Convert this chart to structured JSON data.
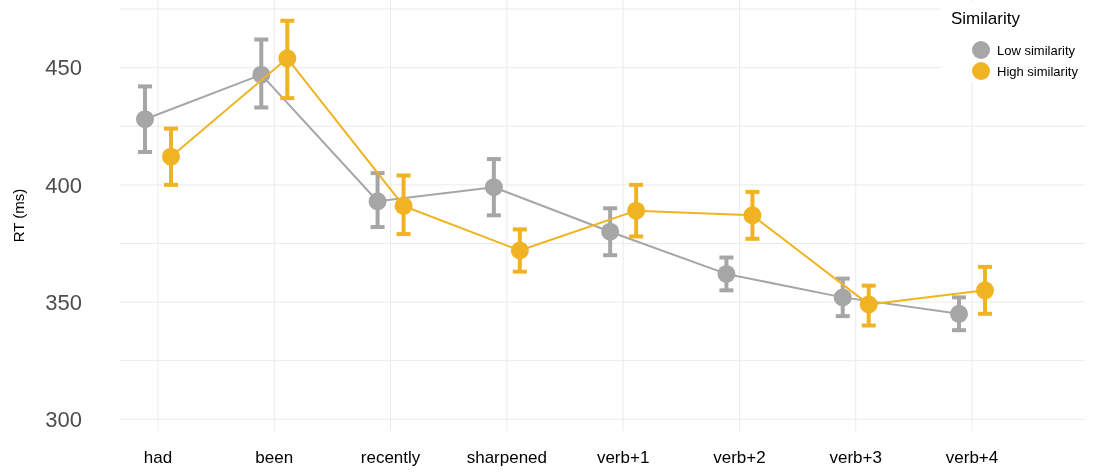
{
  "chart_data": {
    "type": "line",
    "ylabel": "RT (ms)",
    "legend_title": "Similarity",
    "legend": "top right",
    "grid": true,
    "marker": "circle",
    "line_style": "solid",
    "categories": [
      "had",
      "been",
      "recently",
      "sharpened",
      "verb+1",
      "verb+2",
      "verb+3",
      "verb+4"
    ],
    "ylim": [
      295,
      478
    ],
    "yticks": [
      300,
      {
        "value": 325,
        "label": null
      },
      350,
      {
        "value": 375,
        "label": null
      },
      400,
      {
        "value": 425,
        "label": null
      },
      450,
      {
        "value": 475,
        "label": null
      }
    ],
    "series": [
      {
        "name": "Low similarity",
        "color": "#a6a6a6",
        "values": [
          428,
          447,
          393,
          399,
          380,
          362,
          352,
          345
        ],
        "errors": [
          [
            414,
            442
          ],
          [
            433,
            462
          ],
          [
            382,
            405
          ],
          [
            387,
            411
          ],
          [
            370,
            390
          ],
          [
            355,
            369
          ],
          [
            344,
            360
          ],
          [
            338,
            352
          ]
        ]
      },
      {
        "name": "High similarity",
        "color": "#f0b323",
        "values": [
          412,
          454,
          391,
          372,
          389,
          387,
          349,
          355
        ],
        "errors": [
          [
            400,
            424
          ],
          [
            437,
            470
          ],
          [
            379,
            404
          ],
          [
            363,
            381
          ],
          [
            378,
            400
          ],
          [
            377,
            397
          ],
          [
            340,
            357
          ],
          [
            345,
            365
          ]
        ]
      }
    ]
  }
}
